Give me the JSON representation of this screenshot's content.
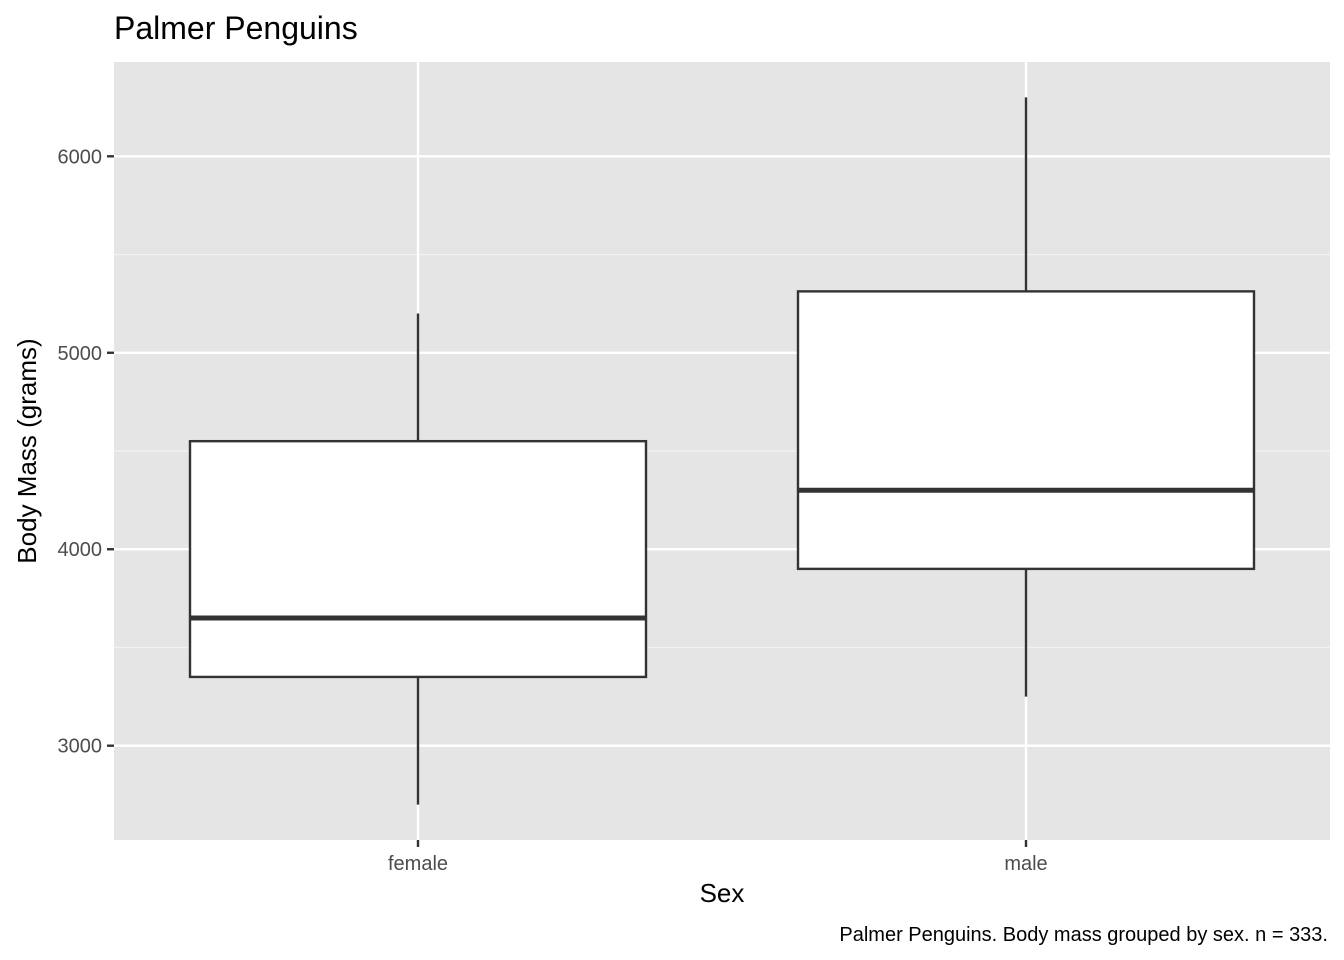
{
  "chart_data": {
    "type": "box",
    "title": "Palmer Penguins",
    "xlabel": "Sex",
    "ylabel": "Body Mass (grams)",
    "caption": "Palmer Penguins. Body mass grouped by sex. n = 333.",
    "categories": [
      "female",
      "male"
    ],
    "boxes": [
      {
        "category": "female",
        "min": 2700,
        "q1": 3350,
        "median": 3650,
        "q3": 4550,
        "max": 5200
      },
      {
        "category": "male",
        "min": 3250,
        "q1": 3900,
        "median": 4300,
        "q3": 5312.5,
        "max": 6300
      }
    ],
    "y_ticks": [
      3000,
      4000,
      5000,
      6000
    ],
    "y_tick_labels": [
      "3000",
      "4000",
      "5000",
      "6000"
    ],
    "ylim": [
      2520,
      6480
    ],
    "grid": true,
    "legend": "none",
    "colors": {
      "panel_background": "#e5e5e5",
      "grid_major": "#ffffff",
      "grid_minor": "#f2f2f2",
      "box_fill": "#ffffff",
      "box_stroke": "#333333",
      "tick": "#333333"
    }
  }
}
